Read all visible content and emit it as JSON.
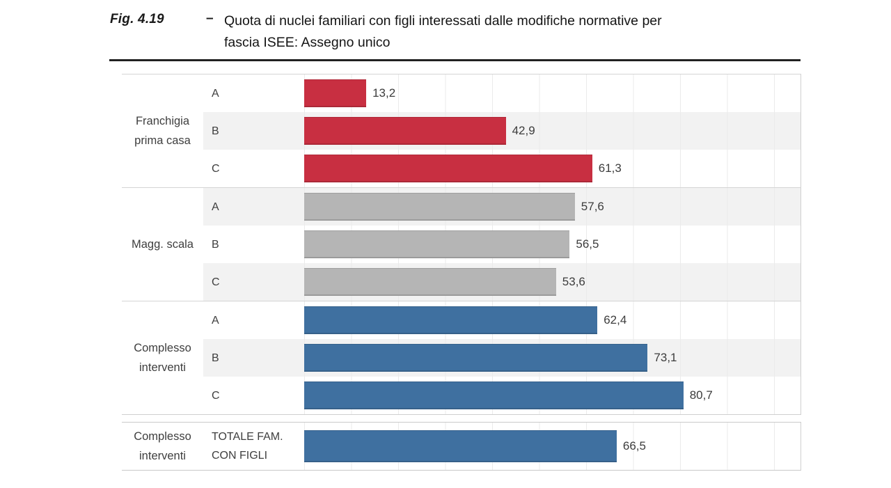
{
  "figure": {
    "label": "Fig. 4.19",
    "separator": "–",
    "title_line1": "Quota di nuclei familiari con figli interessati dalle modifiche normative per",
    "title_line2": "fascia ISEE: Assegno unico"
  },
  "colors": {
    "red": "#c82f41",
    "gray": "#b5b5b5",
    "blue": "#3f70a0",
    "stripe": "#f2f2f2",
    "gridline": "#ebebeb",
    "border": "#cfcfcf",
    "text": "#3e3e3e"
  },
  "chart_data": {
    "type": "bar",
    "orientation": "horizontal",
    "title": "Quota di nuclei familiari con figli interessati dalle modifiche normative per fascia ISEE: Assegno unico",
    "unit": "percent",
    "xlim": [
      0,
      105.8
    ],
    "gridline_step": 10,
    "grid": true,
    "legend": false,
    "value_decimal_separator": ",",
    "groups": [
      {
        "label": "Franchigia prima casa",
        "color": "#c82f41",
        "rows": [
          {
            "category": "A",
            "value": 13.2,
            "value_label": "13,2"
          },
          {
            "category": "B",
            "value": 42.9,
            "value_label": "42,9"
          },
          {
            "category": "C",
            "value": 61.3,
            "value_label": "61,3"
          }
        ]
      },
      {
        "label": "Magg. scala",
        "color": "#b5b5b5",
        "rows": [
          {
            "category": "A",
            "value": 57.6,
            "value_label": "57,6"
          },
          {
            "category": "B",
            "value": 56.5,
            "value_label": "56,5"
          },
          {
            "category": "C",
            "value": 53.6,
            "value_label": "53,6"
          }
        ]
      },
      {
        "label": "Complesso interventi",
        "color": "#3f70a0",
        "rows": [
          {
            "category": "A",
            "value": 62.4,
            "value_label": "62,4"
          },
          {
            "category": "B",
            "value": 73.1,
            "value_label": "73,1"
          },
          {
            "category": "C",
            "value": 80.7,
            "value_label": "80,7"
          }
        ]
      },
      {
        "label": "Complesso interventi",
        "color": "#3f70a0",
        "separate_section": true,
        "rows": [
          {
            "category": "TOTALE FAM. CON FIGLI",
            "value": 66.5,
            "value_label": "66,5"
          }
        ]
      }
    ]
  }
}
